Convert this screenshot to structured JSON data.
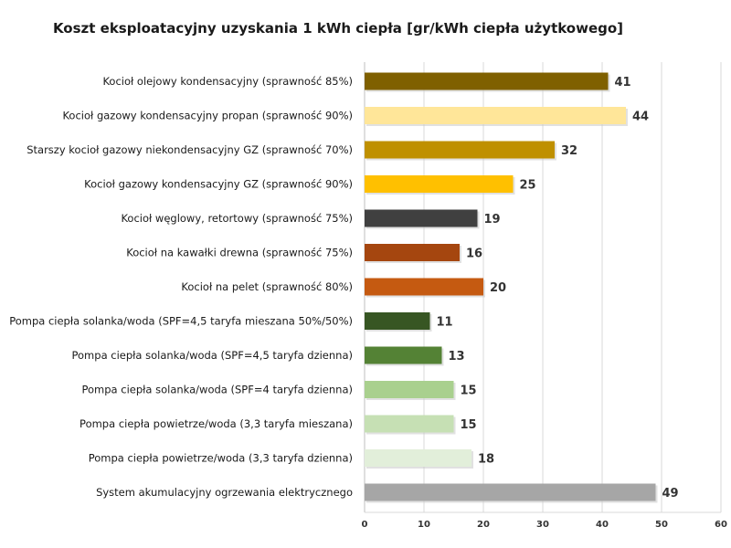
{
  "chart_data": {
    "type": "bar",
    "orientation": "horizontal",
    "title": "Koszt eksploatacyjny uzyskania 1 kWh ciepła [gr/kWh ciepła użytkowego]",
    "xlabel": "",
    "ylabel": "",
    "xlim": [
      0,
      60
    ],
    "ticks": [
      0,
      10,
      20,
      30,
      40,
      50,
      60
    ],
    "grid": true,
    "legend": "none",
    "categories": [
      "Kocioł olejowy kondensacyjny (sprawność 85%)",
      "Kocioł gazowy kondensacyjny propan (sprawność 90%)",
      "Starszy kocioł gazowy niekondensacyjny GZ (sprawność 70%)",
      "Kocioł gazowy kondensacyjny GZ (sprawność 90%)",
      "Kocioł węglowy, retortowy (sprawność 75%)",
      "Kocioł na kawałki drewna (sprawność 75%)",
      "Kocioł na pelet (sprawność 80%)",
      "Pompa ciepła solanka/woda (SPF=4,5 taryfa mieszana 50%/50%)",
      "Pompa ciepła solanka/woda (SPF=4,5 taryfa dzienna)",
      "Pompa ciepła solanka/woda (SPF=4 taryfa dzienna)",
      "Pompa ciepła powietrze/woda (3,3 taryfa mieszana)",
      "Pompa ciepła powietrze/woda (3,3 taryfa dzienna)",
      "System akumulacyjny ogrzewania elektrycznego"
    ],
    "values": [
      41,
      44,
      32,
      25,
      19,
      16,
      20,
      11,
      13,
      15,
      15,
      18,
      49
    ],
    "colors": [
      "#7f6000",
      "#ffe699",
      "#bf9000",
      "#ffc000",
      "#404040",
      "#a5460f",
      "#c55a11",
      "#375623",
      "#548235",
      "#a9d08e",
      "#c6e0b4",
      "#e2efda",
      "#a6a6a6"
    ]
  }
}
